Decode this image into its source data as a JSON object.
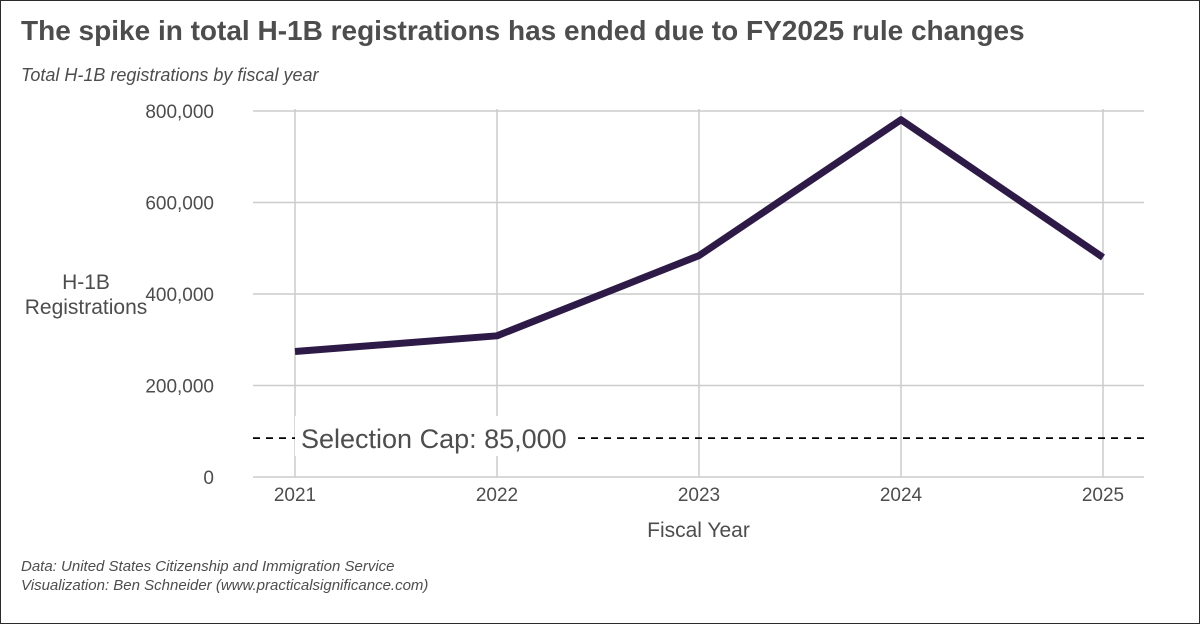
{
  "chart_data": {
    "type": "line",
    "title": "The spike in total H-1B registrations has ended due to FY2025 rule changes",
    "subtitle": "Total H-1B registrations by fiscal year",
    "xlabel": "Fiscal Year",
    "ylabel_lines": [
      "H-1B",
      "Registrations"
    ],
    "x": [
      "2021",
      "2022",
      "2023",
      "2024",
      "2025"
    ],
    "series": [
      {
        "values": [
          274237,
          308613,
          483927,
          780884,
          479953
        ]
      }
    ],
    "ylim": [
      0,
      800000
    ],
    "yticks": [
      0,
      200000,
      400000,
      600000,
      800000
    ],
    "ytick_labels": [
      "0",
      "200,000",
      "400,000",
      "600,000",
      "800,000"
    ],
    "grid": true,
    "line_color": "#2d1a47",
    "reference_line": {
      "value": 85000,
      "style": "dashed",
      "label": "Selection Cap: 85,000"
    },
    "caption_lines": [
      "Data: United States Citizenship and Immigration Service",
      "Visualization: Ben Schneider (www.practicalsignificance.com)"
    ]
  }
}
